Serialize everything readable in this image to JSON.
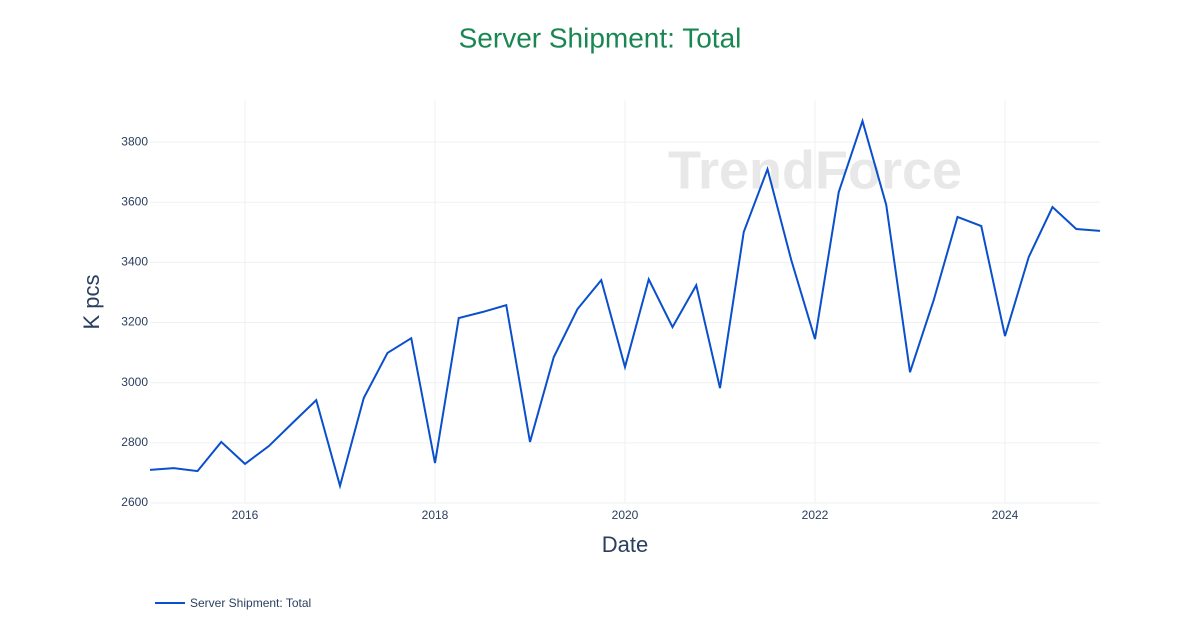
{
  "chart_data": {
    "type": "line",
    "title": "Server Shipment: Total",
    "x_label": "Date",
    "y_label": "K pcs",
    "watermark": "TrendForce",
    "x": [
      2015,
      2015.25,
      2015.5,
      2015.75,
      2016,
      2016.25,
      2016.5,
      2016.75,
      2017,
      2017.25,
      2017.5,
      2017.75,
      2018,
      2018.25,
      2018.5,
      2018.75,
      2019,
      2019.25,
      2019.5,
      2019.75,
      2020,
      2020.25,
      2020.5,
      2020.75,
      2021,
      2021.25,
      2021.5,
      2021.75,
      2022,
      2022.25,
      2022.5,
      2022.75,
      2023,
      2023.25,
      2023.5,
      2023.75,
      2024,
      2024.25,
      2024.5,
      2024.75,
      2025
    ],
    "series": [
      {
        "name": "Server Shipment: Total",
        "color": "#0a4fcc",
        "values": [
          2710,
          2716,
          2706,
          2803,
          2730,
          2789,
          2866,
          2942,
          2657,
          2949,
          3099,
          3148,
          2733,
          3215,
          3235,
          3258,
          2803,
          3085,
          3245,
          3341,
          3052,
          3344,
          3185,
          3324,
          2982,
          3501,
          3710,
          3408,
          3145,
          3634,
          3870,
          3591,
          3035,
          3275,
          3551,
          3521,
          3155,
          3418,
          3584,
          3511,
          3505
        ]
      }
    ],
    "xlim": [
      2015,
      2025
    ],
    "xticks": [
      2016,
      2018,
      2020,
      2022,
      2024
    ],
    "ylim": [
      2600,
      3940
    ],
    "yticks": [
      2600,
      2800,
      3000,
      3200,
      3400,
      3600,
      3800
    ],
    "grid": true,
    "legend": "bottom-left"
  }
}
